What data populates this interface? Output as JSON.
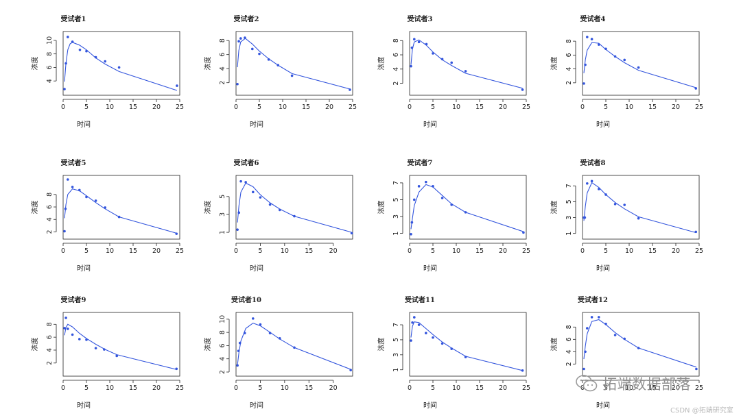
{
  "colors": {
    "line": "#3355dd",
    "point": "#3355dd",
    "axis": "#222222",
    "watermark": "#8f8f8f"
  },
  "watermark": {
    "icon": "wechat-icon",
    "text": "拓端数据部落",
    "site": "CSDN @拓端研究室"
  },
  "chart_data": [
    {
      "type": "scatter",
      "title": "受试者1",
      "xlabel": "时间",
      "ylabel": "浓度",
      "xlim": [
        0,
        25
      ],
      "ylim": [
        2.5,
        10.7
      ],
      "xticks": [
        0,
        5,
        10,
        15,
        20,
        25
      ],
      "yticks": [
        4,
        6,
        8,
        10
      ],
      "points": [
        [
          0.3,
          2.8
        ],
        [
          0.6,
          6.6
        ],
        [
          1,
          10.5
        ],
        [
          2,
          9.8
        ],
        [
          3.6,
          8.6
        ],
        [
          5,
          8.4
        ],
        [
          7,
          7.5
        ],
        [
          9,
          6.9
        ],
        [
          12,
          6
        ],
        [
          24.4,
          3.3
        ]
      ],
      "fit": [
        [
          0.3,
          3.9
        ],
        [
          0.6,
          6.6
        ],
        [
          1,
          8.6
        ],
        [
          1.5,
          9.5
        ],
        [
          2,
          9.7
        ],
        [
          3.5,
          9.3
        ],
        [
          5,
          8.6
        ],
        [
          7,
          7.4
        ],
        [
          9,
          6.5
        ],
        [
          12,
          5.4
        ],
        [
          24.4,
          2.6
        ]
      ]
    },
    {
      "type": "scatter",
      "title": "受试者2",
      "xlabel": "时间",
      "ylabel": "浓度",
      "xlim": [
        0,
        25
      ],
      "ylim": [
        0.8,
        8.7
      ],
      "xticks": [
        0,
        5,
        10,
        15,
        20,
        25
      ],
      "yticks": [
        2,
        4,
        6,
        8
      ],
      "points": [
        [
          0.3,
          1.8
        ],
        [
          0.6,
          7.9
        ],
        [
          1,
          8.3
        ],
        [
          1.9,
          8.4
        ],
        [
          3.5,
          6.8
        ],
        [
          5,
          6.1
        ],
        [
          7,
          5.3
        ],
        [
          9,
          4.5
        ],
        [
          12,
          3
        ],
        [
          24.4,
          1
        ]
      ],
      "fit": [
        [
          0.3,
          4.2
        ],
        [
          0.6,
          6.6
        ],
        [
          1,
          7.8
        ],
        [
          2,
          8.3
        ],
        [
          3.5,
          7.5
        ],
        [
          5,
          6.5
        ],
        [
          7,
          5.4
        ],
        [
          9,
          4.5
        ],
        [
          12,
          3.3
        ],
        [
          24.4,
          1.1
        ]
      ]
    },
    {
      "type": "scatter",
      "title": "受试者3",
      "xlabel": "时间",
      "ylabel": "浓度",
      "xlim": [
        0,
        25
      ],
      "ylim": [
        0.9,
        8.7
      ],
      "xticks": [
        0,
        5,
        10,
        15,
        20,
        25
      ],
      "yticks": [
        2,
        4,
        6,
        8
      ],
      "points": [
        [
          0.3,
          4.4
        ],
        [
          0.5,
          7
        ],
        [
          1,
          8.2
        ],
        [
          2,
          7.8
        ],
        [
          3.6,
          7.5
        ],
        [
          5,
          6.2
        ],
        [
          7,
          5.4
        ],
        [
          9,
          4.9
        ],
        [
          12,
          3.7
        ],
        [
          24.2,
          1.1
        ]
      ],
      "fit": [
        [
          0.3,
          4.6
        ],
        [
          0.6,
          6.8
        ],
        [
          1,
          7.8
        ],
        [
          2,
          8.1
        ],
        [
          3.5,
          7.4
        ],
        [
          5,
          6.4
        ],
        [
          7,
          5.3
        ],
        [
          9,
          4.5
        ],
        [
          12,
          3.4
        ],
        [
          24.2,
          1.3
        ]
      ]
    },
    {
      "type": "scatter",
      "title": "受试者4",
      "xlabel": "时间",
      "ylabel": "浓度",
      "xlim": [
        0,
        25
      ],
      "ylim": [
        0.8,
        8.8
      ],
      "xticks": [
        0,
        5,
        10,
        15,
        20,
        25
      ],
      "yticks": [
        2,
        4,
        6,
        8
      ],
      "points": [
        [
          0.3,
          1.9
        ],
        [
          0.6,
          4.6
        ],
        [
          1,
          8.6
        ],
        [
          2,
          8.3
        ],
        [
          3.5,
          7.5
        ],
        [
          5,
          6.9
        ],
        [
          7,
          5.8
        ],
        [
          9,
          5.3
        ],
        [
          12,
          4.2
        ],
        [
          24.3,
          1.2
        ]
      ],
      "fit": [
        [
          0.3,
          3.4
        ],
        [
          0.6,
          5.3
        ],
        [
          1,
          6.7
        ],
        [
          2,
          7.8
        ],
        [
          3.5,
          7.7
        ],
        [
          5,
          6.8
        ],
        [
          7,
          5.8
        ],
        [
          9,
          4.9
        ],
        [
          12,
          3.8
        ],
        [
          24.3,
          1.3
        ]
      ]
    },
    {
      "type": "scatter",
      "title": "受试者5",
      "xlabel": "时间",
      "ylabel": "浓度",
      "xlim": [
        0,
        25
      ],
      "ylim": [
        1.5,
        10.4
      ],
      "xticks": [
        0,
        5,
        10,
        15,
        20,
        25
      ],
      "yticks": [
        2,
        4,
        6,
        8
      ],
      "points": [
        [
          0.3,
          2.1
        ],
        [
          0.5,
          5.7
        ],
        [
          1,
          10.4
        ],
        [
          2,
          9.2
        ],
        [
          3.5,
          8.7
        ],
        [
          5,
          7.6
        ],
        [
          7,
          7
        ],
        [
          9,
          5.9
        ],
        [
          12,
          4.4
        ],
        [
          24.3,
          1.7
        ]
      ],
      "fit": [
        [
          0.3,
          4.2
        ],
        [
          0.6,
          6.4
        ],
        [
          1,
          8
        ],
        [
          2,
          8.9
        ],
        [
          3.5,
          8.6
        ],
        [
          5,
          7.8
        ],
        [
          7,
          6.7
        ],
        [
          9,
          5.7
        ],
        [
          12,
          4.4
        ],
        [
          24.3,
          1.8
        ]
      ]
    },
    {
      "type": "scatter",
      "title": "受试者6",
      "xlabel": "时间",
      "ylabel": "浓度",
      "xlim": [
        0,
        24
      ],
      "ylim": [
        0.7,
        6.9
      ],
      "xticks": [
        0,
        5,
        10,
        15,
        20
      ],
      "yticks": [
        1,
        3,
        5
      ],
      "points": [
        [
          0.3,
          1.3
        ],
        [
          0.6,
          3.2
        ],
        [
          1,
          6.7
        ],
        [
          2,
          6.6
        ],
        [
          3.5,
          5.5
        ],
        [
          5,
          4.9
        ],
        [
          7,
          4.1
        ],
        [
          9,
          3.5
        ],
        [
          12,
          2.8
        ],
        [
          23.8,
          0.9
        ]
      ],
      "fit": [
        [
          0.3,
          2.1
        ],
        [
          0.6,
          4
        ],
        [
          1,
          5.5
        ],
        [
          2,
          6.5
        ],
        [
          3.5,
          6.1
        ],
        [
          5,
          5.2
        ],
        [
          7,
          4.3
        ],
        [
          9,
          3.6
        ],
        [
          12,
          2.8
        ],
        [
          23.8,
          1
        ]
      ]
    },
    {
      "type": "scatter",
      "title": "受试者7",
      "xlabel": "时间",
      "ylabel": "浓度",
      "xlim": [
        0,
        25
      ],
      "ylim": [
        0.8,
        7.4
      ],
      "xticks": [
        0,
        5,
        10,
        15,
        20,
        25
      ],
      "yticks": [
        1,
        3,
        5,
        7
      ],
      "points": [
        [
          0.3,
          0.9
        ],
        [
          0.5,
          2.3
        ],
        [
          1,
          5
        ],
        [
          2,
          6.6
        ],
        [
          3.5,
          7.1
        ],
        [
          5,
          6.6
        ],
        [
          7,
          5.2
        ],
        [
          9,
          4.4
        ],
        [
          12,
          3.5
        ],
        [
          24.4,
          1.1
        ]
      ],
      "fit": [
        [
          0.3,
          1.5
        ],
        [
          0.6,
          2.8
        ],
        [
          1,
          4.3
        ],
        [
          2,
          5.9
        ],
        [
          3.5,
          6.8
        ],
        [
          5,
          6.5
        ],
        [
          7,
          5.5
        ],
        [
          9,
          4.5
        ],
        [
          12,
          3.5
        ],
        [
          24.4,
          1.2
        ]
      ]
    },
    {
      "type": "scatter",
      "title": "受试者8",
      "xlabel": "时间",
      "ylabel": "浓度",
      "xlim": [
        0,
        25
      ],
      "ylim": [
        0.8,
        7.8
      ],
      "xticks": [
        0,
        5,
        10,
        15,
        20,
        25
      ],
      "yticks": [
        1,
        3,
        5,
        7
      ],
      "points": [
        [
          0.3,
          3
        ],
        [
          0.5,
          3
        ],
        [
          1,
          7.3
        ],
        [
          2,
          7.6
        ],
        [
          3.5,
          6.6
        ],
        [
          5,
          5.9
        ],
        [
          7,
          4.7
        ],
        [
          9,
          4.6
        ],
        [
          12,
          2.9
        ],
        [
          24.3,
          1.2
        ]
      ],
      "fit": [
        [
          0.3,
          2.6
        ],
        [
          0.6,
          4.4
        ],
        [
          1,
          6.1
        ],
        [
          2,
          7.4
        ],
        [
          3.5,
          6.8
        ],
        [
          5,
          5.9
        ],
        [
          7,
          4.9
        ],
        [
          9,
          4.1
        ],
        [
          12,
          3.1
        ],
        [
          24.3,
          1.1
        ]
      ]
    },
    {
      "type": "scatter",
      "title": "受试者9",
      "xlabel": "时间",
      "ylabel": "浓度",
      "xlim": [
        0,
        25
      ],
      "ylim": [
        0.6,
        9.2
      ],
      "xticks": [
        0,
        5,
        10,
        15,
        20,
        25
      ],
      "yticks": [
        2,
        4,
        6,
        8
      ],
      "points": [
        [
          0.3,
          7.4
        ],
        [
          0.6,
          9
        ],
        [
          1,
          7.3
        ],
        [
          2,
          6.4
        ],
        [
          3.5,
          5.7
        ],
        [
          5,
          5.6
        ],
        [
          7,
          4.3
        ],
        [
          8.8,
          4.1
        ],
        [
          11.5,
          3.1
        ],
        [
          24.3,
          1.1
        ]
      ],
      "fit": [
        [
          0.3,
          6.3
        ],
        [
          0.6,
          7.5
        ],
        [
          1,
          8
        ],
        [
          2,
          7.6
        ],
        [
          3.5,
          6.6
        ],
        [
          5,
          5.8
        ],
        [
          7,
          4.9
        ],
        [
          9,
          4.1
        ],
        [
          11.5,
          3.3
        ],
        [
          24.3,
          1
        ]
      ]
    },
    {
      "type": "scatter",
      "title": "受试者10",
      "xlabel": "时间",
      "ylabel": "浓度",
      "xlim": [
        0,
        24
      ],
      "ylim": [
        2,
        10.4
      ],
      "xticks": [
        0,
        5,
        10,
        15,
        20
      ],
      "yticks": [
        2,
        4,
        6,
        8,
        10
      ],
      "points": [
        [
          0.3,
          3
        ],
        [
          0.5,
          5.2
        ],
        [
          0.8,
          6.4
        ],
        [
          1.8,
          7.9
        ],
        [
          3.5,
          10.1
        ],
        [
          5,
          9.2
        ],
        [
          7,
          7.9
        ],
        [
          9,
          7.1
        ],
        [
          12,
          5.7
        ],
        [
          23.6,
          2.3
        ]
      ],
      "fit": [
        [
          0.3,
          3.1
        ],
        [
          0.6,
          5
        ],
        [
          1,
          6.7
        ],
        [
          2,
          8.6
        ],
        [
          3.5,
          9.4
        ],
        [
          5,
          9
        ],
        [
          7,
          8
        ],
        [
          9,
          7
        ],
        [
          12,
          5.7
        ],
        [
          23.6,
          2.4
        ]
      ]
    },
    {
      "type": "scatter",
      "title": "受试者11",
      "xlabel": "时间",
      "ylabel": "浓度",
      "xlim": [
        0,
        25
      ],
      "ylim": [
        0.7,
        8.1
      ],
      "xticks": [
        0,
        5,
        10,
        15,
        20,
        25
      ],
      "yticks": [
        1,
        3,
        5,
        7
      ],
      "points": [
        [
          0.3,
          4.9
        ],
        [
          0.6,
          7.3
        ],
        [
          1,
          8
        ],
        [
          2,
          7
        ],
        [
          3.5,
          5.9
        ],
        [
          5,
          5.3
        ],
        [
          7,
          4.5
        ],
        [
          9,
          3.8
        ],
        [
          12,
          2.7
        ],
        [
          24.2,
          0.9
        ]
      ],
      "fit": [
        [
          0.3,
          5.3
        ],
        [
          0.6,
          6.8
        ],
        [
          1,
          7.4
        ],
        [
          2,
          7.3
        ],
        [
          3.5,
          6.5
        ],
        [
          5,
          5.7
        ],
        [
          7,
          4.7
        ],
        [
          9,
          3.9
        ],
        [
          12,
          2.8
        ],
        [
          24.2,
          0.9
        ]
      ]
    },
    {
      "type": "scatter",
      "title": "受试者12",
      "xlabel": "时间",
      "ylabel": "浓度",
      "xlim": [
        0,
        25
      ],
      "ylim": [
        0.7,
        9.7
      ],
      "xticks": [
        0,
        5,
        10,
        15,
        20,
        25
      ],
      "yticks": [
        2,
        4,
        6,
        8
      ],
      "points": [
        [
          0.3,
          1.2
        ],
        [
          0.6,
          4
        ],
        [
          1,
          7.8
        ],
        [
          2,
          9.6
        ],
        [
          3.5,
          9.6
        ],
        [
          5,
          8.5
        ],
        [
          7,
          6.7
        ],
        [
          9,
          6.1
        ],
        [
          12,
          4.6
        ],
        [
          24.4,
          1.2
        ]
      ],
      "fit": [
        [
          0.3,
          2.8
        ],
        [
          0.6,
          4.9
        ],
        [
          1,
          6.9
        ],
        [
          2,
          8.9
        ],
        [
          3.5,
          9.2
        ],
        [
          5,
          8.4
        ],
        [
          7,
          7.1
        ],
        [
          9,
          6
        ],
        [
          12,
          4.6
        ],
        [
          24.4,
          1.5
        ]
      ]
    }
  ]
}
